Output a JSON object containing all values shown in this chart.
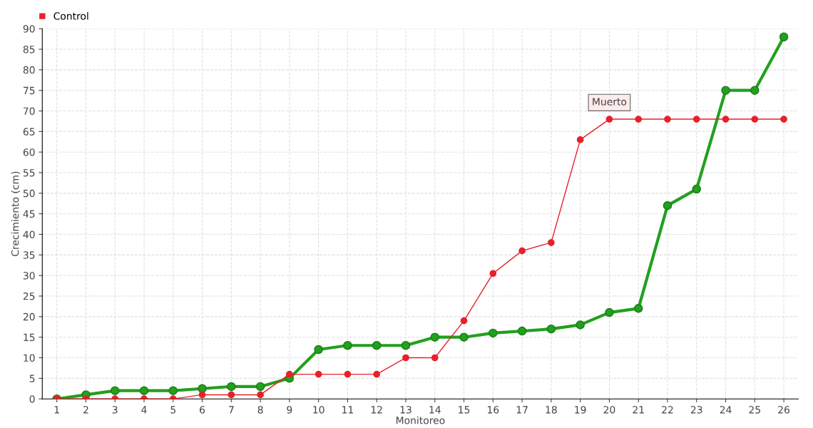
{
  "chart_data": {
    "type": "line",
    "xlabel": "Monitoreo",
    "ylabel": "Crecimiento (cm)",
    "categories": [
      "1",
      "2",
      "3",
      "4",
      "5",
      "6",
      "7",
      "8",
      "9",
      "10",
      "11",
      "12",
      "13",
      "14",
      "15",
      "16",
      "17",
      "18",
      "19",
      "20",
      "21",
      "22",
      "23",
      "24",
      "25",
      "26"
    ],
    "series": [
      {
        "color": "#22a01e",
        "values": [
          0,
          1,
          2,
          2,
          2,
          2.5,
          3,
          3,
          5,
          12,
          13,
          13,
          13,
          15,
          15,
          16,
          16.5,
          17,
          18,
          21,
          22,
          47,
          51,
          75,
          75,
          88
        ]
      },
      {
        "name": "Control",
        "color": "#e8202a",
        "values": [
          0,
          0,
          0,
          0,
          0,
          1,
          1,
          1,
          6,
          6,
          6,
          6,
          10,
          10,
          19,
          30.5,
          36,
          38,
          63,
          68,
          68,
          68,
          68,
          68,
          68,
          68
        ]
      }
    ],
    "ylim": [
      0,
      90
    ],
    "yticks": [
      0,
      5,
      10,
      15,
      20,
      25,
      30,
      35,
      40,
      45,
      50,
      55,
      60,
      65,
      70,
      75,
      80,
      85,
      90
    ],
    "grid": true,
    "legend": "top left",
    "marker": "circle",
    "line_style": "solid",
    "annotations": [
      {
        "text": "Muerto",
        "x": "20",
        "y": 68
      }
    ]
  }
}
